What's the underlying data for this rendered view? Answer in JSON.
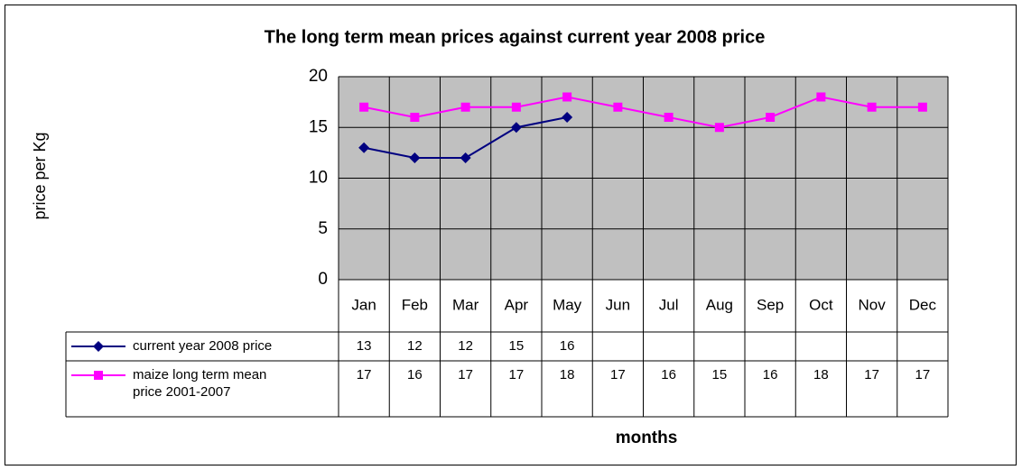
{
  "chart_data": {
    "type": "line",
    "title": "The long term mean prices against current year 2008 price",
    "y_label": "price per Kg",
    "x_label": "months",
    "categories": [
      "Jan",
      "Feb",
      "Mar",
      "Apr",
      "May",
      "Jun",
      "Jul",
      "Aug",
      "Sep",
      "Oct",
      "Nov",
      "Dec"
    ],
    "series": [
      {
        "name": "current year 2008 price",
        "color": "#000080",
        "marker": "diamond",
        "values": [
          13,
          12,
          12,
          15,
          16,
          null,
          null,
          null,
          null,
          null,
          null,
          null
        ]
      },
      {
        "name": "maize long term mean price 2001-2007",
        "color": "#ff00ff",
        "marker": "square",
        "values": [
          17,
          16,
          17,
          17,
          18,
          17,
          16,
          15,
          16,
          18,
          17,
          17
        ]
      }
    ],
    "ylim": [
      0,
      20
    ],
    "yticks": [
      0,
      5,
      10,
      15,
      20
    ],
    "grid": true,
    "data_table": true
  }
}
